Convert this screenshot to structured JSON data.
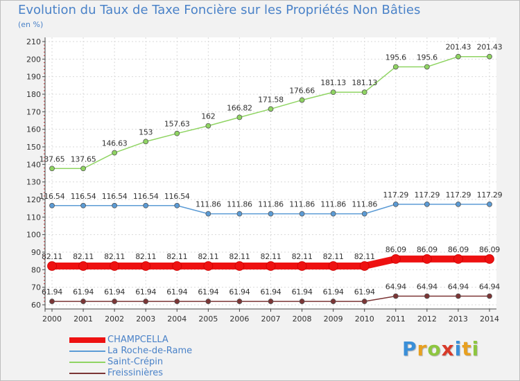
{
  "title": "Evolution du Taux de Taxe Foncière sur les Propriétés Non Bâties",
  "unit": "(en %)",
  "brand": {
    "letters": [
      "P",
      "r",
      "o",
      "x",
      "i",
      "t",
      "i"
    ],
    "colors": [
      "#3a8fd8",
      "#e8a020",
      "#8dc63f",
      "#d83a2a",
      "#3a8fd8",
      "#e8a020",
      "#8dc63f"
    ]
  },
  "chart_data": {
    "type": "line",
    "title": "Evolution du Taux de Taxe Foncière sur les Propriétés Non Bâties",
    "ylabel": "(en %)",
    "ylim": [
      60,
      210
    ],
    "yticks": [
      60,
      70,
      80,
      90,
      100,
      110,
      120,
      130,
      140,
      150,
      160,
      170,
      180,
      190,
      200,
      210
    ],
    "x": [
      "2000",
      "2001",
      "2002",
      "2003",
      "2004",
      "2005",
      "2006",
      "2007",
      "2008",
      "2009",
      "2010",
      "2011",
      "2012",
      "2013",
      "2014"
    ],
    "grid": true,
    "series": [
      {
        "name": "CHAMPCELLA",
        "color": "#ee1111",
        "width": 10,
        "values": [
          82.11,
          82.11,
          82.11,
          82.11,
          82.11,
          82.11,
          82.11,
          82.11,
          82.11,
          82.11,
          82.11,
          86.09,
          86.09,
          86.09,
          86.09
        ],
        "labels": [
          "82.11",
          "82.11",
          "82.11",
          "82.11",
          "82.11",
          "82.11",
          "82.11",
          "82.11",
          "82.11",
          "82.11",
          "82.11",
          "86.09",
          "86.09",
          "86.09",
          "86.09"
        ]
      },
      {
        "name": "La Roche-de-Rame",
        "color": "#5b9bd5",
        "width": 1.5,
        "values": [
          116.54,
          116.54,
          116.54,
          116.54,
          116.54,
          111.86,
          111.86,
          111.86,
          111.86,
          111.86,
          111.86,
          117.29,
          117.29,
          117.29,
          117.29
        ],
        "labels": [
          "116.54",
          "116.54",
          "116.54",
          "116.54",
          "116.54",
          "111.86",
          "111.86",
          "111.86",
          "111.86",
          "111.86",
          "111.86",
          "117.29",
          "117.29",
          "117.29",
          "117.29"
        ]
      },
      {
        "name": "Saint-Crépin",
        "color": "#8fd462",
        "width": 1.5,
        "values": [
          137.65,
          137.65,
          146.63,
          153,
          157.63,
          162,
          166.82,
          171.58,
          176.66,
          181.13,
          181.13,
          195.6,
          195.6,
          201.43,
          201.43
        ],
        "labels": [
          "137.65",
          "137.65",
          "146.63",
          "153",
          "157.63",
          "162",
          "166.82",
          "171.58",
          "176.66",
          "181.13",
          "181.13",
          "195.6",
          "195.6",
          "201.43",
          "201.43"
        ]
      },
      {
        "name": "Freissinières",
        "color": "#7b3535",
        "width": 1.5,
        "values": [
          61.94,
          61.94,
          61.94,
          61.94,
          61.94,
          61.94,
          61.94,
          61.94,
          61.94,
          61.94,
          61.94,
          64.94,
          64.94,
          64.94,
          64.94
        ],
        "labels": [
          "61.94",
          "61.94",
          "61.94",
          "61.94",
          "61.94",
          "61.94",
          "61.94",
          "61.94",
          "61.94",
          "61.94",
          "61.94",
          "64.94",
          "64.94",
          "64.94",
          "64.94"
        ]
      }
    ]
  }
}
